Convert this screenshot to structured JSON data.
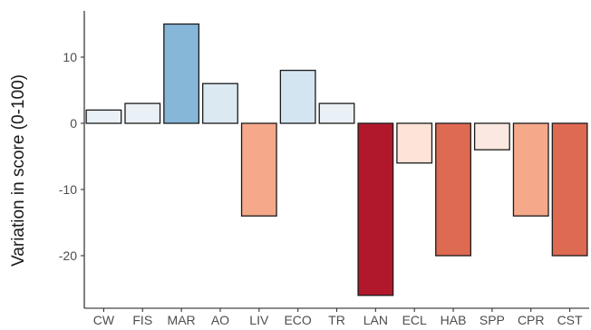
{
  "chart_data": {
    "type": "bar",
    "title": "",
    "xlabel": "",
    "ylabel": "Variation in score (0-100)",
    "ylim": [
      -28,
      17
    ],
    "yticks": [
      -20,
      -10,
      0,
      10
    ],
    "grid": false,
    "legend": "none",
    "categories": [
      "CW",
      "FIS",
      "MAR",
      "AO",
      "LIV",
      "ECO",
      "TR",
      "LAN",
      "ECL",
      "HAB",
      "SPP",
      "CPR",
      "CST"
    ],
    "values": [
      2,
      3,
      15,
      6,
      -14,
      8,
      3,
      -26,
      -6,
      -20,
      -4,
      -14,
      -20
    ],
    "colors": [
      "#eaf1f6",
      "#eaf1f6",
      "#86b6d8",
      "#dbe9f3",
      "#f5a98a",
      "#d4e5f2",
      "#eaf1f6",
      "#b2182b",
      "#fde3d8",
      "#df6a52",
      "#fbe8e0",
      "#f5a98a",
      "#df6a52"
    ]
  }
}
